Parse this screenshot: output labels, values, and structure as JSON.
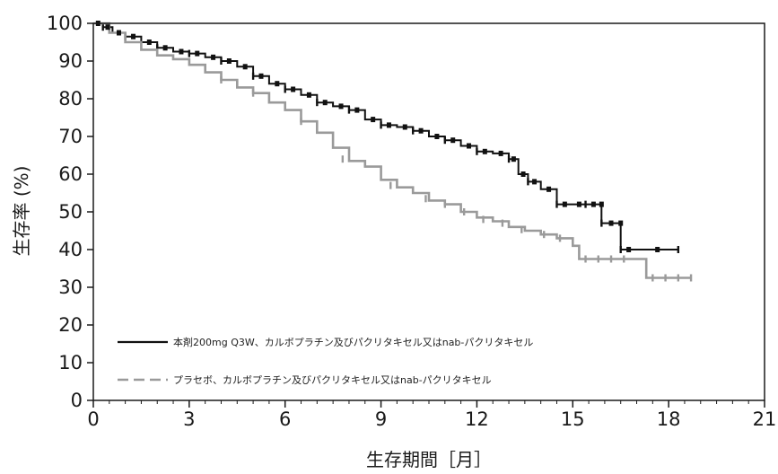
{
  "chart_data": {
    "type": "line",
    "title": "",
    "xlabel": "生存期間［月］",
    "ylabel": "生存率 (%)",
    "xlim": [
      0,
      21
    ],
    "ylim": [
      0,
      100
    ],
    "xticks": [
      0,
      3,
      6,
      9,
      12,
      15,
      18,
      21
    ],
    "yticks": [
      0,
      10,
      20,
      30,
      40,
      50,
      60,
      70,
      80,
      90,
      100
    ],
    "grid": false,
    "legend_position": "bottom-left",
    "series": [
      {
        "name": "本剤200mg Q3W、カルボプラチン及びパクリタキセル又はnab-パクリタキセル",
        "color": "#111111",
        "style": "solid",
        "points": [
          [
            0,
            100
          ],
          [
            0.3,
            99
          ],
          [
            0.6,
            97.5
          ],
          [
            1,
            96.5
          ],
          [
            1.5,
            95
          ],
          [
            2,
            93.5
          ],
          [
            2.5,
            92.5
          ],
          [
            3,
            92
          ],
          [
            3.5,
            91
          ],
          [
            4,
            90
          ],
          [
            4.5,
            88.5
          ],
          [
            5,
            86
          ],
          [
            5.5,
            84
          ],
          [
            6,
            82.5
          ],
          [
            6.5,
            81
          ],
          [
            7,
            79
          ],
          [
            7.5,
            78
          ],
          [
            8,
            77
          ],
          [
            8.5,
            74.5
          ],
          [
            9,
            73
          ],
          [
            9.5,
            72.5
          ],
          [
            10,
            71.5
          ],
          [
            10.5,
            70
          ],
          [
            11,
            69
          ],
          [
            11.5,
            67.5
          ],
          [
            12,
            66
          ],
          [
            12.5,
            65.5
          ],
          [
            13,
            64
          ],
          [
            13.3,
            60
          ],
          [
            13.6,
            58
          ],
          [
            14,
            56
          ],
          [
            14.5,
            52
          ],
          [
            15,
            52
          ],
          [
            15.4,
            52
          ],
          [
            15.9,
            52
          ],
          [
            15.9,
            47
          ],
          [
            16.5,
            47
          ],
          [
            16.5,
            40
          ],
          [
            17,
            40
          ],
          [
            18.3,
            40
          ]
        ]
      },
      {
        "name": "プラセボ、カルボプラチン及びパクリタキセル又はnab-パクリタキセル",
        "color": "#9a9a9a",
        "style": "dashed",
        "points": [
          [
            0,
            100
          ],
          [
            0.5,
            97.5
          ],
          [
            1,
            95
          ],
          [
            1.5,
            93
          ],
          [
            2,
            91.5
          ],
          [
            2.5,
            90.5
          ],
          [
            3,
            89
          ],
          [
            3.5,
            87
          ],
          [
            4,
            85
          ],
          [
            4.5,
            83
          ],
          [
            5,
            81.5
          ],
          [
            5.5,
            79
          ],
          [
            6,
            77
          ],
          [
            6.5,
            74
          ],
          [
            7,
            71
          ],
          [
            7.5,
            67
          ],
          [
            8,
            63.5
          ],
          [
            8.5,
            62
          ],
          [
            9,
            58.5
          ],
          [
            9.5,
            56.5
          ],
          [
            10,
            55
          ],
          [
            10.5,
            53
          ],
          [
            11,
            52
          ],
          [
            11.5,
            50
          ],
          [
            12,
            48.5
          ],
          [
            12.5,
            47.5
          ],
          [
            13,
            46
          ],
          [
            13.5,
            45
          ],
          [
            14,
            44
          ],
          [
            14.5,
            43
          ],
          [
            15,
            41
          ],
          [
            15.2,
            37.5
          ],
          [
            16,
            37.5
          ],
          [
            16.5,
            37.5
          ],
          [
            17.2,
            37.5
          ],
          [
            17.3,
            32.5
          ],
          [
            18,
            32.5
          ],
          [
            18.7,
            32.5
          ]
        ],
        "censor_marks": [
          [
            4.0,
            85
          ],
          [
            5.0,
            81.5
          ],
          [
            6.5,
            74
          ],
          [
            7.8,
            64
          ],
          [
            9.3,
            57
          ],
          [
            10.4,
            53.5
          ],
          [
            11.0,
            52
          ],
          [
            11.6,
            50
          ],
          [
            12.2,
            48
          ],
          [
            12.8,
            47
          ],
          [
            13.4,
            45.3
          ],
          [
            14.1,
            44
          ],
          [
            14.6,
            43
          ],
          [
            15.4,
            37.5
          ],
          [
            15.8,
            37.5
          ],
          [
            16.2,
            37.5
          ],
          [
            16.6,
            37.5
          ],
          [
            17.5,
            32.5
          ],
          [
            17.9,
            32.5
          ],
          [
            18.3,
            32.5
          ],
          [
            18.7,
            32.5
          ]
        ]
      }
    ]
  }
}
